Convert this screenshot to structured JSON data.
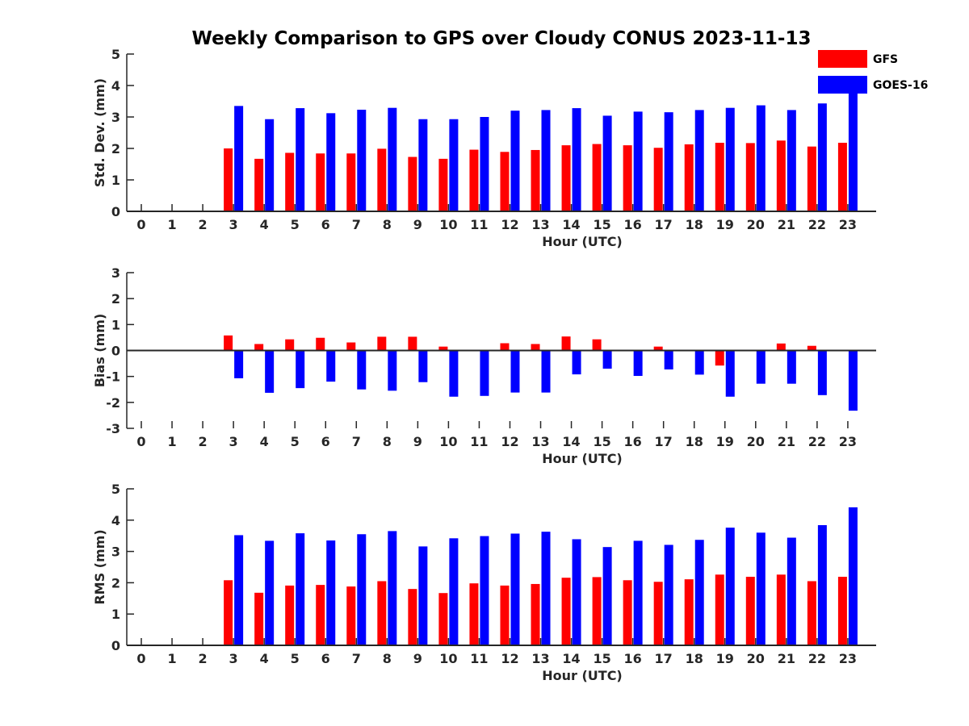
{
  "title": "Weekly Comparison to GPS over Cloudy CONUS 2023-11-13",
  "colors": {
    "GFS": "#ff0000",
    "GOES-16": "#0000ff",
    "axis": "#262626"
  },
  "legend": [
    {
      "label": "GFS",
      "color": "#ff0000"
    },
    {
      "label": "GOES-16",
      "color": "#0000ff"
    }
  ],
  "chart_data": [
    {
      "type": "bar",
      "ylabel": "Std. Dev. (mm)",
      "xlabel": "Hour (UTC)",
      "ylim": [
        0,
        5
      ],
      "yticks": [
        0,
        1,
        2,
        3,
        4,
        5
      ],
      "categories": [
        0,
        1,
        2,
        3,
        4,
        5,
        6,
        7,
        8,
        9,
        10,
        11,
        12,
        13,
        14,
        15,
        16,
        17,
        18,
        19,
        20,
        21,
        22,
        23
      ],
      "series": [
        {
          "name": "GFS",
          "values": [
            null,
            null,
            null,
            2.0,
            1.67,
            1.86,
            1.84,
            1.84,
            1.99,
            1.73,
            1.67,
            1.96,
            1.89,
            1.95,
            2.1,
            2.14,
            2.1,
            2.02,
            2.13,
            2.18,
            2.17,
            2.25,
            2.06,
            2.18
          ]
        },
        {
          "name": "GOES-16",
          "values": [
            null,
            null,
            null,
            3.35,
            2.93,
            3.28,
            3.12,
            3.23,
            3.29,
            2.93,
            2.93,
            3.0,
            3.2,
            3.22,
            3.28,
            3.04,
            3.17,
            3.15,
            3.22,
            3.29,
            3.37,
            3.22,
            3.43,
            3.78
          ]
        }
      ]
    },
    {
      "type": "bar",
      "ylabel": "Bias (mm)",
      "xlabel": "Hour (UTC)",
      "ylim": [
        -3,
        3
      ],
      "yticks": [
        -3,
        -2,
        -1,
        0,
        1,
        2,
        3
      ],
      "categories": [
        0,
        1,
        2,
        3,
        4,
        5,
        6,
        7,
        8,
        9,
        10,
        11,
        12,
        13,
        14,
        15,
        16,
        17,
        18,
        19,
        20,
        21,
        22,
        23
      ],
      "series": [
        {
          "name": "GFS",
          "values": [
            null,
            null,
            null,
            0.58,
            0.25,
            0.43,
            0.49,
            0.31,
            0.53,
            0.53,
            0.15,
            0.0,
            0.28,
            0.25,
            0.54,
            0.43,
            0.0,
            0.15,
            0.02,
            -0.58,
            0.0,
            0.27,
            0.18,
            0.02
          ]
        },
        {
          "name": "GOES-16",
          "values": [
            null,
            null,
            null,
            -1.07,
            -1.63,
            -1.45,
            -1.2,
            -1.5,
            -1.55,
            -1.22,
            -1.78,
            -1.75,
            -1.62,
            -1.62,
            -0.92,
            -0.7,
            -0.98,
            -0.73,
            -0.93,
            -1.78,
            -1.28,
            -1.28,
            -1.72,
            -2.32
          ]
        }
      ]
    },
    {
      "type": "bar",
      "ylabel": "RMS (mm)",
      "xlabel": "Hour (UTC)",
      "ylim": [
        0,
        5
      ],
      "yticks": [
        0,
        1,
        2,
        3,
        4,
        5
      ],
      "categories": [
        0,
        1,
        2,
        3,
        4,
        5,
        6,
        7,
        8,
        9,
        10,
        11,
        12,
        13,
        14,
        15,
        16,
        17,
        18,
        19,
        20,
        21,
        22,
        23
      ],
      "series": [
        {
          "name": "GFS",
          "values": [
            null,
            null,
            null,
            2.08,
            1.68,
            1.91,
            1.93,
            1.88,
            2.05,
            1.8,
            1.67,
            1.98,
            1.91,
            1.96,
            2.16,
            2.18,
            2.08,
            2.03,
            2.11,
            2.26,
            2.19,
            2.26,
            2.05,
            2.19
          ]
        },
        {
          "name": "GOES-16",
          "values": [
            null,
            null,
            null,
            3.52,
            3.34,
            3.58,
            3.35,
            3.55,
            3.65,
            3.16,
            3.42,
            3.49,
            3.57,
            3.63,
            3.39,
            3.14,
            3.34,
            3.21,
            3.37,
            3.76,
            3.6,
            3.44,
            3.84,
            4.41
          ]
        }
      ]
    }
  ]
}
